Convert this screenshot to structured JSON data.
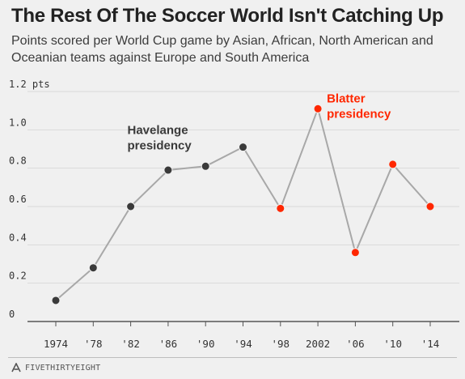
{
  "title": "The Rest Of The Soccer World Isn't Catching Up",
  "subtitle": "Points scored per World Cup game by Asian, African, North American and Oceanian teams against Europe and South America",
  "footer": {
    "brand": "FIVETHIRTYEIGHT"
  },
  "colors": {
    "havelange": "#3a3a3a",
    "blatter": "#ff2700",
    "line": "#a8a8a8",
    "grid": "#d9d9d9",
    "axis": "#555555"
  },
  "chart_data": {
    "type": "line",
    "x": [
      "1974",
      "'78",
      "'82",
      "'86",
      "'90",
      "'94",
      "'98",
      "2002",
      "'06",
      "'10",
      "'14"
    ],
    "series": [
      {
        "values": [
          0.11,
          0.28,
          0.6,
          0.79,
          0.81,
          0.91,
          0.59,
          1.11,
          0.36,
          0.82,
          0.6
        ],
        "era": [
          "havelange",
          "havelange",
          "havelange",
          "havelange",
          "havelange",
          "havelange",
          "blatter",
          "blatter",
          "blatter",
          "blatter",
          "blatter"
        ]
      }
    ],
    "y_ticks": [
      {
        "value": 0,
        "label": "0"
      },
      {
        "value": 0.2,
        "label": "0.2"
      },
      {
        "value": 0.4,
        "label": "0.4"
      },
      {
        "value": 0.6,
        "label": "0.6"
      },
      {
        "value": 0.8,
        "label": "0.8"
      },
      {
        "value": 1.0,
        "label": "1.0"
      },
      {
        "value": 1.2,
        "label": "1.2 pts"
      }
    ],
    "ylim": [
      0,
      1.2
    ],
    "grid": true,
    "annotations": [
      {
        "text": [
          "Havelange",
          "presidency"
        ],
        "era": "havelange",
        "anchor_index": 5
      },
      {
        "text": [
          "Blatter",
          "presidency"
        ],
        "era": "blatter",
        "anchor_index": 7
      }
    ]
  }
}
